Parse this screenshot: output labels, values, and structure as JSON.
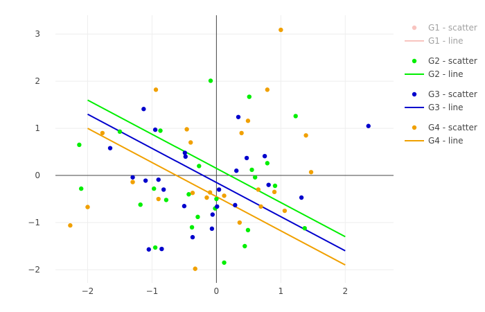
{
  "chart_data": {
    "type": "scatter",
    "xlim": [
      -2.5,
      2.75
    ],
    "ylim": [
      -2.28,
      3.4
    ],
    "x_ticks": [
      -2,
      -1,
      0,
      1,
      2
    ],
    "y_ticks": [
      -2,
      -1,
      0,
      1,
      2,
      3
    ],
    "x_tick_labels": [
      "−2",
      "−1",
      "0",
      "1",
      "2"
    ],
    "y_tick_labels": [
      "−2",
      "−1",
      "0",
      "1",
      "2",
      "3"
    ],
    "grid": true,
    "zero_lines": true,
    "legend_position": "right",
    "series": [
      {
        "group": "G1",
        "scatter_name": "G1 - scatter",
        "line_name": "G1 - line",
        "color": "#f28b82",
        "hidden": true,
        "points": [],
        "line": []
      },
      {
        "group": "G2",
        "scatter_name": "G2 - scatter",
        "line_name": "G2 - line",
        "color": "#00ee00",
        "hidden": false,
        "points": [
          [
            -2.13,
            0.65
          ],
          [
            -2.1,
            -0.28
          ],
          [
            -1.5,
            0.93
          ],
          [
            -1.18,
            -0.62
          ],
          [
            -0.97,
            -0.28
          ],
          [
            -0.95,
            -1.53
          ],
          [
            -0.87,
            0.95
          ],
          [
            -0.78,
            -0.52
          ],
          [
            -0.43,
            -0.4
          ],
          [
            -0.38,
            -1.1
          ],
          [
            -0.29,
            -0.88
          ],
          [
            -0.27,
            0.2
          ],
          [
            -0.09,
            2.01
          ],
          [
            -0.02,
            -0.7
          ],
          [
            0.0,
            -0.5
          ],
          [
            0.12,
            -1.85
          ],
          [
            0.44,
            -1.5
          ],
          [
            0.49,
            -1.16
          ],
          [
            0.51,
            1.67
          ],
          [
            0.55,
            0.12
          ],
          [
            0.6,
            -0.04
          ],
          [
            0.79,
            0.26
          ],
          [
            0.91,
            -0.22
          ],
          [
            1.23,
            1.26
          ],
          [
            1.37,
            -1.12
          ]
        ],
        "line": [
          [
            -2,
            1.6
          ],
          [
            2,
            -1.3
          ]
        ]
      },
      {
        "group": "G3",
        "scatter_name": "G3 - scatter",
        "line_name": "G3 - line",
        "color": "#0000cc",
        "hidden": false,
        "points": [
          [
            -1.65,
            0.58
          ],
          [
            -1.3,
            -0.04
          ],
          [
            -1.13,
            1.41
          ],
          [
            -1.1,
            -0.11
          ],
          [
            -1.05,
            -1.57
          ],
          [
            -0.95,
            0.97
          ],
          [
            -0.9,
            -0.09
          ],
          [
            -0.85,
            -1.56
          ],
          [
            -0.82,
            -0.3
          ],
          [
            -0.5,
            -0.65
          ],
          [
            -0.49,
            0.48
          ],
          [
            -0.48,
            0.4
          ],
          [
            -0.37,
            -1.31
          ],
          [
            -0.07,
            -1.13
          ],
          [
            -0.06,
            -0.83
          ],
          [
            0.01,
            -0.66
          ],
          [
            0.04,
            -0.3
          ],
          [
            0.29,
            -0.63
          ],
          [
            0.31,
            0.1
          ],
          [
            0.34,
            1.24
          ],
          [
            0.47,
            0.37
          ],
          [
            0.75,
            0.41
          ],
          [
            0.81,
            -0.2
          ],
          [
            1.32,
            -0.47
          ],
          [
            2.36,
            1.05
          ]
        ],
        "line": [
          [
            -2,
            1.3
          ],
          [
            2,
            -1.6
          ]
        ]
      },
      {
        "group": "G4",
        "scatter_name": "G4 - scatter",
        "line_name": "G4 - line",
        "color": "#f0a000",
        "hidden": false,
        "points": [
          [
            -2.27,
            -1.06
          ],
          [
            -2.0,
            -0.67
          ],
          [
            -1.77,
            0.9
          ],
          [
            -1.3,
            -0.14
          ],
          [
            -0.94,
            1.82
          ],
          [
            -0.9,
            -0.5
          ],
          [
            -0.46,
            0.98
          ],
          [
            -0.4,
            0.7
          ],
          [
            -0.37,
            -0.37
          ],
          [
            -0.33,
            -1.98
          ],
          [
            -0.15,
            -0.47
          ],
          [
            -0.1,
            -0.36
          ],
          [
            0.12,
            -0.43
          ],
          [
            0.36,
            -1.0
          ],
          [
            0.39,
            0.9
          ],
          [
            0.49,
            1.16
          ],
          [
            0.65,
            -0.3
          ],
          [
            0.69,
            -0.66
          ],
          [
            0.79,
            1.82
          ],
          [
            0.9,
            -0.35
          ],
          [
            1.0,
            3.09
          ],
          [
            1.06,
            -0.75
          ],
          [
            1.39,
            0.85
          ],
          [
            1.47,
            0.07
          ]
        ],
        "line": [
          [
            -2,
            1.0
          ],
          [
            2,
            -1.9
          ]
        ]
      }
    ]
  }
}
